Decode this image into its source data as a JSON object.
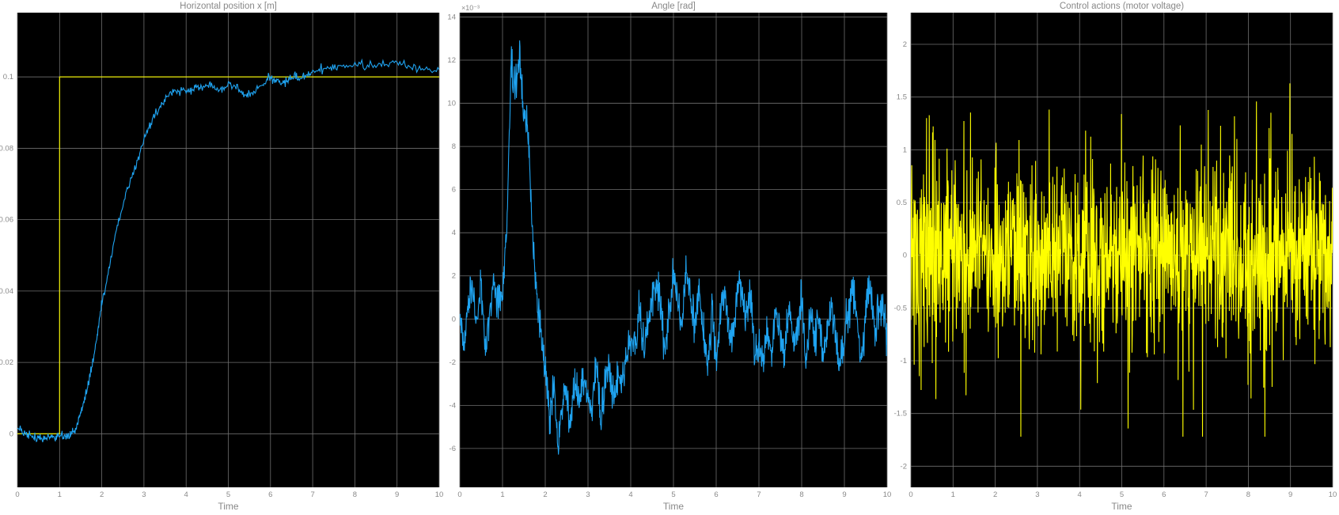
{
  "window": {
    "background": "#ffffff",
    "plot_background": "#000000",
    "grid_color": "#6f6f6f",
    "text_color": "#888888"
  },
  "chart_data": [
    {
      "type": "line",
      "title": "Horizontal position x [m]",
      "xlabel": "Time",
      "ylabel": "",
      "xlim": [
        0,
        10
      ],
      "ylim": [
        -0.015,
        0.118
      ],
      "xticks": [
        "0",
        "1",
        "2",
        "3",
        "4",
        "5",
        "6",
        "7",
        "8",
        "9",
        "10"
      ],
      "yticks": [
        {
          "value": 0,
          "label": "0"
        },
        {
          "value": 0.02,
          "label": "0.02"
        },
        {
          "value": 0.04,
          "label": "0.04"
        },
        {
          "value": 0.06,
          "label": "0.06"
        },
        {
          "value": 0.08,
          "label": "0.08"
        },
        {
          "value": 0.1,
          "label": "0.1"
        }
      ],
      "grid": true,
      "series": [
        {
          "color": "#ffff00",
          "x": [
            0,
            1,
            1,
            10
          ],
          "y": [
            0,
            0,
            0.1,
            0.1
          ]
        },
        {
          "color": "#1fa3f0",
          "noise": 0.0006,
          "x": [
            0,
            0.2,
            0.4,
            0.55,
            0.7,
            0.85,
            1.0,
            1.1,
            1.2,
            1.3,
            1.4,
            1.5,
            1.6,
            1.7,
            1.8,
            1.9,
            2.0,
            2.2,
            2.4,
            2.6,
            2.8,
            3.0,
            3.2,
            3.4,
            3.6,
            3.8,
            4.0,
            4.2,
            4.4,
            4.6,
            4.8,
            5.0,
            5.2,
            5.4,
            5.6,
            5.8,
            6.0,
            6.2,
            6.4,
            6.6,
            6.8,
            7.0,
            7.3,
            7.6,
            8.0,
            8.4,
            8.8,
            9.2,
            9.6,
            10.0
          ],
          "y": [
            0.001,
            0.0,
            -0.001,
            -0.0015,
            -0.0005,
            -0.001,
            0.0,
            -0.001,
            -0.0008,
            0.0005,
            0.002,
            0.006,
            0.01,
            0.015,
            0.021,
            0.028,
            0.036,
            0.048,
            0.06,
            0.068,
            0.075,
            0.082,
            0.088,
            0.092,
            0.095,
            0.096,
            0.096,
            0.097,
            0.097,
            0.098,
            0.096,
            0.098,
            0.097,
            0.095,
            0.096,
            0.098,
            0.1,
            0.098,
            0.099,
            0.1,
            0.1,
            0.101,
            0.102,
            0.103,
            0.103,
            0.103,
            0.104,
            0.103,
            0.102,
            0.102
          ]
        }
      ]
    },
    {
      "type": "line",
      "title": "Angle [rad]",
      "xlabel": "Time",
      "ylabel": "",
      "multiplier": "×10⁻³",
      "xlim": [
        0,
        10
      ],
      "ylim": [
        -7.8,
        14.2
      ],
      "xticks": [
        "0",
        "1",
        "2",
        "3",
        "4",
        "5",
        "6",
        "7",
        "8",
        "9",
        "10"
      ],
      "yticks": [
        {
          "value": -6,
          "label": "-6"
        },
        {
          "value": -4,
          "label": "-4"
        },
        {
          "value": -2,
          "label": "-2"
        },
        {
          "value": 0,
          "label": "0"
        },
        {
          "value": 2,
          "label": "2"
        },
        {
          "value": 4,
          "label": "4"
        },
        {
          "value": 6,
          "label": "6"
        },
        {
          "value": 8,
          "label": "8"
        },
        {
          "value": 10,
          "label": "10"
        },
        {
          "value": 12,
          "label": "12"
        },
        {
          "value": 14,
          "label": "14"
        }
      ],
      "grid": true,
      "series": [
        {
          "color": "#1fa3f0",
          "noise": 0.45,
          "x": [
            0,
            0.1,
            0.2,
            0.3,
            0.4,
            0.5,
            0.6,
            0.7,
            0.8,
            0.9,
            1.0,
            1.1,
            1.2,
            1.3,
            1.4,
            1.5,
            1.6,
            1.7,
            1.8,
            1.9,
            2.0,
            2.1,
            2.2,
            2.3,
            2.4,
            2.5,
            2.6,
            2.7,
            2.8,
            2.9,
            3.0,
            3.1,
            3.2,
            3.3,
            3.4,
            3.5,
            3.6,
            3.7,
            3.8,
            3.9,
            4.0,
            4.1,
            4.2,
            4.3,
            4.4,
            4.5,
            4.6,
            4.7,
            4.8,
            4.9,
            5.0,
            5.1,
            5.2,
            5.3,
            5.4,
            5.5,
            5.6,
            5.7,
            5.8,
            5.9,
            6.0,
            6.1,
            6.2,
            6.3,
            6.4,
            6.5,
            6.6,
            6.7,
            6.8,
            6.9,
            7.0,
            7.1,
            7.2,
            7.3,
            7.4,
            7.5,
            7.6,
            7.7,
            7.8,
            7.9,
            8.0,
            8.1,
            8.2,
            8.3,
            8.4,
            8.5,
            8.6,
            8.7,
            8.8,
            8.9,
            9.0,
            9.1,
            9.2,
            9.3,
            9.4,
            9.5,
            9.6,
            9.7,
            9.8,
            9.9,
            10.0
          ],
          "y": [
            0.3,
            -1.2,
            0.8,
            1.5,
            -0.3,
            1.8,
            -1.5,
            0.2,
            1.9,
            0.6,
            1.2,
            4.0,
            11.5,
            10.8,
            12.1,
            9.5,
            8.5,
            4.0,
            1.0,
            -0.5,
            -2.5,
            -4.5,
            -3.2,
            -5.6,
            -4.0,
            -3.5,
            -4.8,
            -2.5,
            -3.8,
            -2.5,
            -3.5,
            -4.2,
            -2.0,
            -5.0,
            -2.8,
            -2.2,
            -3.6,
            -2.5,
            -3.0,
            -1.8,
            -0.8,
            -1.5,
            0.5,
            -1.2,
            -0.5,
            1.0,
            1.8,
            0.4,
            -1.5,
            0.5,
            2.1,
            1.0,
            -0.5,
            2.4,
            0.8,
            -0.3,
            1.5,
            -1.0,
            -2.5,
            0.5,
            -2.2,
            0.5,
            1.2,
            -1.0,
            -0.5,
            1.5,
            1.0,
            0.0,
            1.2,
            -1.8,
            -1.2,
            -2.0,
            -0.5,
            -1.5,
            0.4,
            -0.8,
            -1.8,
            0.6,
            -1.2,
            -0.5,
            1.0,
            -2.0,
            0.5,
            -0.8,
            0.3,
            -1.5,
            -0.5,
            0.8,
            -1.0,
            -2.0,
            -1.2,
            0.5,
            1.2,
            -0.4,
            -1.8,
            0.6,
            1.5,
            -0.4,
            0.2,
            0.8,
            -1.2
          ]
        }
      ]
    },
    {
      "type": "line",
      "title": "Control actions (motor voltage)",
      "xlabel": "Time",
      "ylabel": "",
      "xlim": [
        0,
        10
      ],
      "ylim": [
        -2.2,
        2.3
      ],
      "xticks": [
        "0",
        "1",
        "2",
        "3",
        "4",
        "5",
        "6",
        "7",
        "8",
        "9",
        "10"
      ],
      "yticks": [
        {
          "value": -2,
          "label": "-2"
        },
        {
          "value": -1.5,
          "label": "-1.5"
        },
        {
          "value": -1,
          "label": "-1"
        },
        {
          "value": -0.5,
          "label": "-0.5"
        },
        {
          "value": 0,
          "label": "0"
        },
        {
          "value": 0.5,
          "label": "0.5"
        },
        {
          "value": 1,
          "label": "1"
        },
        {
          "value": 1.5,
          "label": "1.5"
        },
        {
          "value": 2,
          "label": "2"
        }
      ],
      "grid": true,
      "series": [
        {
          "color": "#ffff00",
          "noise_signal": {
            "points": 1400,
            "std": 0.45,
            "peak_positive": 1.88,
            "peak_negative": -1.72
          }
        }
      ]
    }
  ]
}
